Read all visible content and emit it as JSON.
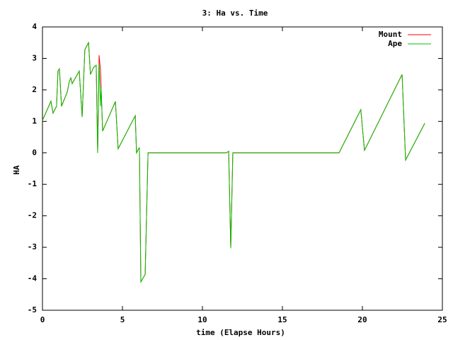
{
  "chart_data": {
    "type": "line",
    "title": "3: Ha vs. Time",
    "x_label": "time (Elapse Hours)",
    "y_label": "HA",
    "x": [
      0,
      0.53,
      0.66,
      0.88,
      0.97,
      1.06,
      1.19,
      1.55,
      1.68,
      1.77,
      1.86,
      2.3,
      2.48,
      2.65,
      2.88,
      3.0,
      3.19,
      3.36,
      3.45,
      3.54,
      3.63,
      3.67,
      3.76,
      4.56,
      4.73,
      5.8,
      5.88,
      6.06,
      6.15,
      6.42,
      6.6,
      11.5,
      11.64,
      11.77,
      11.9,
      18.54,
      19.9,
      20.13,
      22.48,
      22.7,
      23.9
    ],
    "series": [
      {
        "name": "Mount",
        "color": "#ff0000",
        "values": [
          1.03,
          1.64,
          1.26,
          1.48,
          2.6,
          2.67,
          1.48,
          1.93,
          2.27,
          2.38,
          2.2,
          2.6,
          1.14,
          3.28,
          3.5,
          2.49,
          2.71,
          2.78,
          0,
          3.1,
          2.6,
          2.04,
          0.69,
          1.63,
          0.13,
          1.18,
          0,
          0.17,
          -4.1,
          -3.86,
          0,
          0,
          0.05,
          -3.03,
          0,
          0,
          1.37,
          0.08,
          2.49,
          -0.23,
          0.94
        ]
      },
      {
        "name": "Ape",
        "color": "#00c000",
        "values": [
          1.03,
          1.64,
          1.26,
          1.48,
          2.6,
          2.67,
          1.48,
          1.93,
          2.27,
          2.38,
          2.2,
          2.6,
          1.14,
          3.28,
          3.5,
          2.49,
          2.71,
          2.78,
          0,
          2.83,
          1.48,
          2.04,
          0.69,
          1.63,
          0.13,
          1.18,
          0,
          0.17,
          -4.1,
          -3.86,
          0,
          0,
          0.05,
          -3.03,
          0,
          0,
          1.37,
          0.08,
          2.49,
          -0.23,
          0.94
        ]
      }
    ],
    "xlim": [
      0,
      25
    ],
    "xticks": [
      0,
      5,
      10,
      15,
      20,
      25
    ],
    "ylim": [
      -5,
      4
    ],
    "yticks": [
      -5,
      -4,
      -3,
      -2,
      -1,
      0,
      1,
      2,
      3,
      4
    ],
    "grid": false,
    "legend": "top-right"
  }
}
